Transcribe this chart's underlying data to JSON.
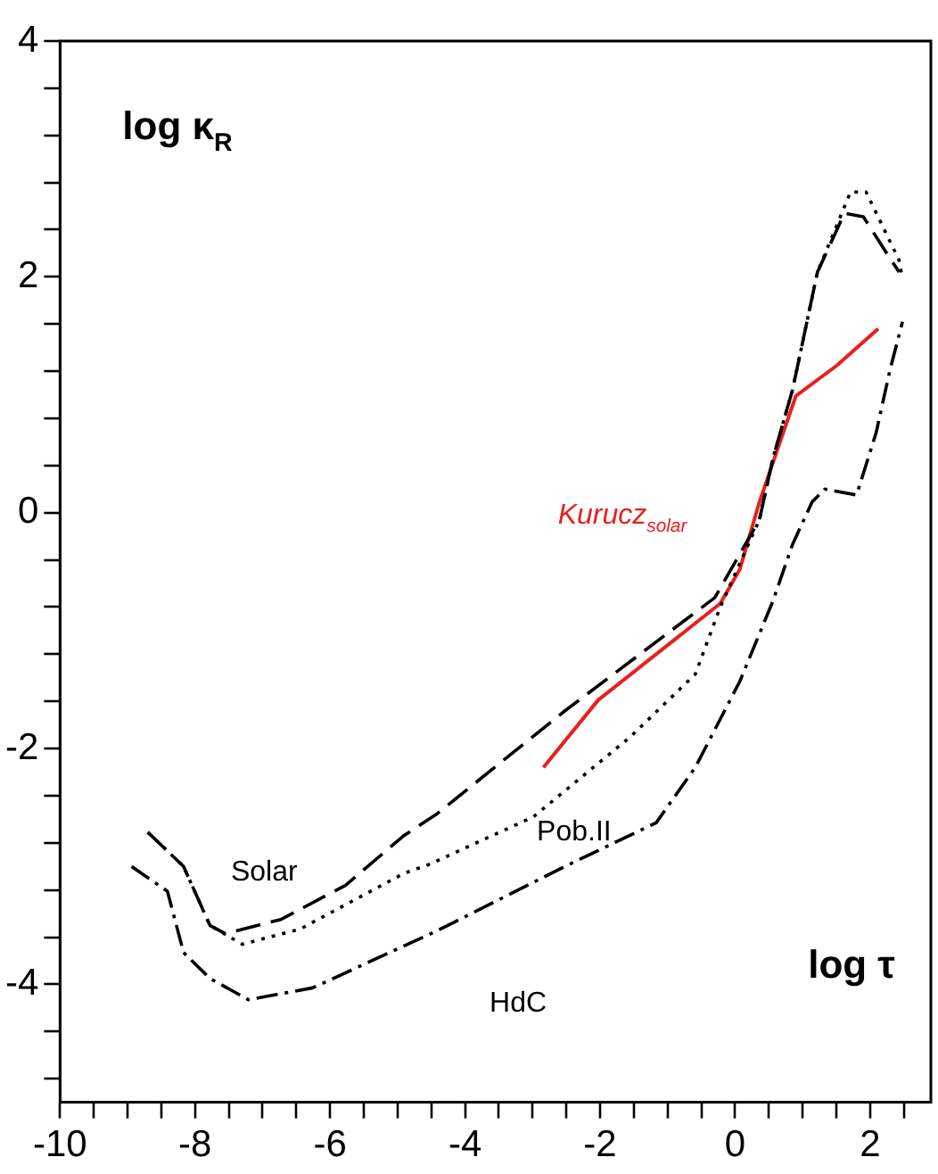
{
  "chart_data": {
    "type": "line",
    "xlabel": "log τ",
    "ylabel": "log κ$_{R}$",
    "xlim": [
      -10,
      2.9
    ],
    "ylim": [
      -5,
      4
    ],
    "xticks": [
      -10,
      {
        "value": -9.5,
        "label": null
      },
      {
        "value": -9,
        "label": null
      },
      {
        "value": -8.5,
        "label": null
      },
      -8,
      {
        "value": -7.5,
        "label": null
      },
      {
        "value": -7,
        "label": null
      },
      {
        "value": -6.5,
        "label": null
      },
      -6,
      {
        "value": -5.5,
        "label": null
      },
      {
        "value": -5,
        "label": null
      },
      {
        "value": -4.5,
        "label": null
      },
      -4,
      {
        "value": -3.5,
        "label": null
      },
      {
        "value": -3,
        "label": null
      },
      {
        "value": -2.5,
        "label": null
      },
      -2,
      {
        "value": -1.5,
        "label": null
      },
      {
        "value": -1,
        "label": null
      },
      {
        "value": -0.5,
        "label": null
      },
      0,
      {
        "value": 0.5,
        "label": null
      },
      {
        "value": 1,
        "label": null
      },
      {
        "value": 1.5,
        "label": null
      },
      2,
      {
        "value": 2.5,
        "label": null
      }
    ],
    "yticks": [
      {
        "value": -4.8,
        "label": null
      },
      {
        "value": -4.4,
        "label": null
      },
      -4,
      {
        "value": -3.6,
        "label": null
      },
      {
        "value": -3.2,
        "label": null
      },
      {
        "value": -2.8,
        "label": null
      },
      {
        "value": -2.4,
        "label": null
      },
      -2,
      {
        "value": -1.6,
        "label": null
      },
      {
        "value": -1.2,
        "label": null
      },
      {
        "value": -0.8,
        "label": null
      },
      {
        "value": -0.4,
        "label": null
      },
      0,
      {
        "value": 0.4,
        "label": null
      },
      {
        "value": 0.8,
        "label": null
      },
      {
        "value": 1.2,
        "label": null
      },
      {
        "value": 1.6,
        "label": null
      },
      2,
      {
        "value": 2.4,
        "label": null
      },
      {
        "value": 2.8,
        "label": null
      },
      {
        "value": 3.2,
        "label": null
      },
      {
        "value": 3.6,
        "label": null
      },
      4
    ],
    "grid": false,
    "legend": false,
    "marker": "none",
    "series": [
      {
        "name": "Solar",
        "color": "#000000",
        "line_style": "dashed",
        "x": [
          -8.7,
          -8.17,
          -7.78,
          -7.55,
          -6.73,
          -5.77,
          -4.91,
          -4.43,
          -2.52,
          -0.3,
          0.36,
          0.56,
          0.85,
          1.22,
          1.62,
          1.9,
          2.19,
          2.43
        ],
        "values": [
          -2.71,
          -3.0,
          -3.5,
          -3.57,
          -3.45,
          -3.16,
          -2.74,
          -2.56,
          -1.68,
          -0.72,
          -0.06,
          0.46,
          1.04,
          2.04,
          2.54,
          2.51,
          2.25,
          2.04
        ]
      },
      {
        "name": "Pob.II",
        "color": "#000000",
        "line_style": "dotted",
        "x": [
          -8.7,
          -8.17,
          -7.78,
          -7.3,
          -6.44,
          -4.91,
          -4.52,
          -2.99,
          -1.55,
          -0.59,
          -0.22,
          0.03,
          0.36,
          0.56,
          0.85,
          1.22,
          1.71,
          1.94,
          2.43,
          2.48
        ],
        "values": [
          -2.71,
          -3.0,
          -3.5,
          -3.66,
          -3.53,
          -3.06,
          -2.98,
          -2.58,
          -1.9,
          -1.37,
          -0.8,
          -0.48,
          -0.06,
          0.46,
          1.04,
          2.04,
          2.72,
          2.72,
          2.14,
          1.98
        ]
      },
      {
        "name": "HdC",
        "color": "#000000",
        "line_style": "dashdot",
        "x": [
          -8.94,
          -8.41,
          -8.17,
          -7.78,
          -7.21,
          -6.26,
          -4.43,
          -2.52,
          -1.17,
          -0.59,
          0.07,
          0.56,
          0.85,
          1.14,
          1.33,
          1.8,
          2.09,
          2.29,
          2.48
        ],
        "values": [
          -3.0,
          -3.21,
          -3.73,
          -3.95,
          -4.13,
          -4.03,
          -3.55,
          -3.0,
          -2.63,
          -2.16,
          -1.43,
          -0.75,
          -0.27,
          0.09,
          0.2,
          0.15,
          0.68,
          1.2,
          1.62
        ]
      },
      {
        "name": "Kurucz$_{solar}$",
        "color": "#e8201e",
        "line_style": "solid",
        "x": [
          -2.84,
          -2.03,
          -0.22,
          0.07,
          0.36,
          0.9,
          1.51,
          2.12
        ],
        "values": [
          -2.16,
          -1.59,
          -0.77,
          -0.48,
          0.09,
          0.99,
          1.25,
          1.56
        ]
      }
    ]
  }
}
